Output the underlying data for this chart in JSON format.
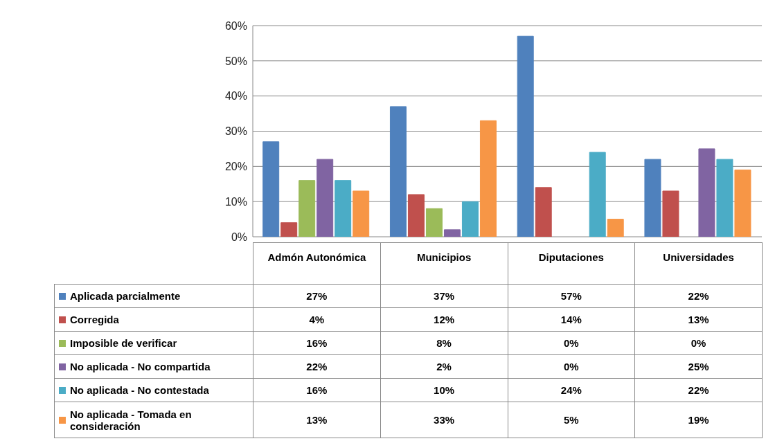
{
  "chart_data": {
    "type": "bar",
    "categories": [
      "Admón Autonómica",
      "Municipios",
      "Diputaciones",
      "Universidades"
    ],
    "series": [
      {
        "name": "Aplicada parcialmente",
        "color": "#4f81bd",
        "values": [
          27,
          37,
          57,
          22
        ],
        "value_labels": [
          "27%",
          "37%",
          "57%",
          "22%"
        ]
      },
      {
        "name": "Corregida",
        "color": "#c0504d",
        "values": [
          4,
          12,
          14,
          13
        ],
        "value_labels": [
          "4%",
          "12%",
          "14%",
          "13%"
        ]
      },
      {
        "name": "Imposible de verificar",
        "color": "#9bbb59",
        "values": [
          16,
          8,
          0,
          0
        ],
        "value_labels": [
          "16%",
          "8%",
          "0%",
          "0%"
        ]
      },
      {
        "name": "No aplicada - No compartida",
        "color": "#8064a2",
        "values": [
          22,
          2,
          0,
          25
        ],
        "value_labels": [
          "22%",
          "2%",
          "0%",
          "25%"
        ]
      },
      {
        "name": "No aplicada - No contestada",
        "color": "#4bacc6",
        "values": [
          16,
          10,
          24,
          22
        ],
        "value_labels": [
          "16%",
          "10%",
          "24%",
          "22%"
        ]
      },
      {
        "name": "No aplicada - Tomada en consideración",
        "color": "#f79646",
        "values": [
          13,
          33,
          5,
          19
        ],
        "value_labels": [
          "13%",
          "33%",
          "5%",
          "19%"
        ]
      }
    ],
    "ylim": [
      0,
      60
    ],
    "yticks": [
      {
        "value": 0,
        "label": "0%"
      },
      {
        "value": 10,
        "label": "10%"
      },
      {
        "value": 20,
        "label": "20%"
      },
      {
        "value": 30,
        "label": "30%"
      },
      {
        "value": 40,
        "label": "40%"
      },
      {
        "value": 50,
        "label": "50%"
      },
      {
        "value": 60,
        "label": "60%"
      }
    ],
    "grid": "y",
    "legend": "bottom"
  }
}
